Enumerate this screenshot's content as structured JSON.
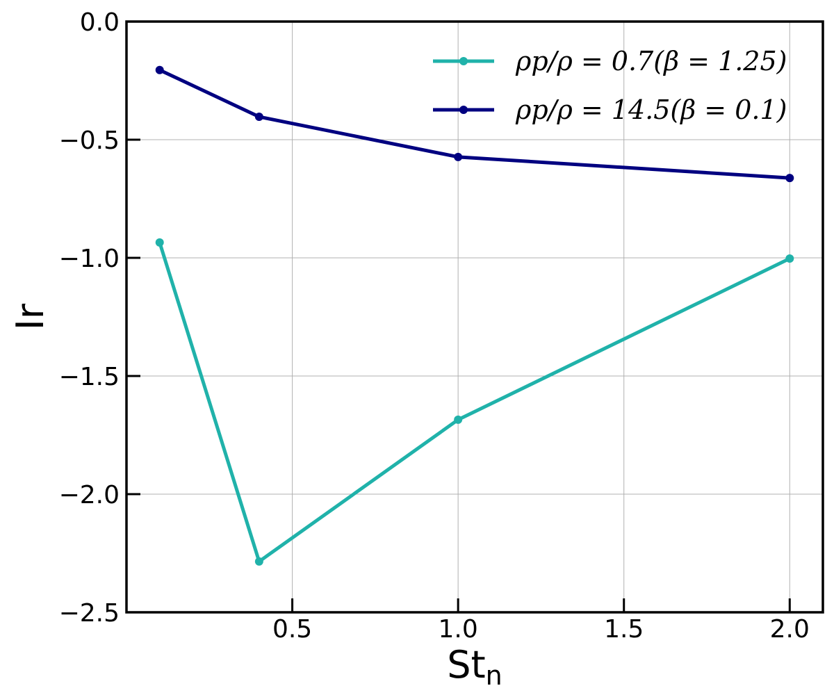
{
  "chart_data": {
    "type": "line",
    "xlabel": "St",
    "xlabel_subscript": "n",
    "ylabel": "Ir",
    "xlim": [
      0.0,
      2.1
    ],
    "ylim": [
      -2.5,
      0.0
    ],
    "xticks": [
      0.5,
      1.0,
      1.5,
      2.0
    ],
    "xtick_labels": [
      "0.5",
      "1.0",
      "1.5",
      "2.0"
    ],
    "yticks": [
      0.0,
      -0.5,
      -1.0,
      -1.5,
      -2.0,
      -2.5
    ],
    "ytick_labels": [
      "0.0",
      "−0.5",
      "−1.0",
      "−1.5",
      "−2.0",
      "−2.5"
    ],
    "grid": true,
    "legend_position": "top-right",
    "series": [
      {
        "name": "ρp/ρ = 0.7(β = 1.25)",
        "color": "#20b2aa",
        "x": [
          0.1,
          0.4,
          1.0,
          2.0
        ],
        "y": [
          -0.935,
          -2.285,
          -1.685,
          -1.003
        ]
      },
      {
        "name": "ρp/ρ = 14.5(β = 0.1)",
        "color": "#000080",
        "x": [
          0.1,
          0.4,
          1.0,
          2.0
        ],
        "y": [
          -0.205,
          -0.403,
          -0.573,
          -0.662
        ]
      }
    ]
  }
}
